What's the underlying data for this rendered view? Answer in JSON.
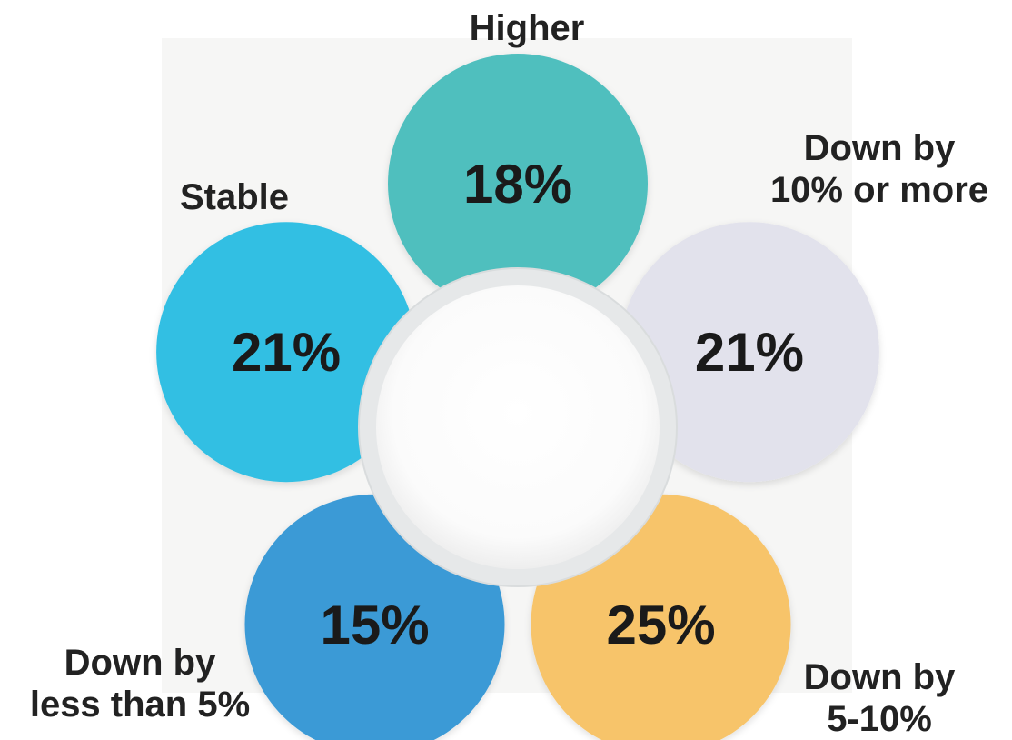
{
  "chart_data": {
    "type": "pie",
    "title": "",
    "slices": [
      {
        "label_lines": [
          "Higher"
        ],
        "value": 18,
        "value_label": "18%",
        "color": "#4fbfbe"
      },
      {
        "label_lines": [
          "Down by",
          "10% or more"
        ],
        "value": 21,
        "value_label": "21%",
        "color": "#e2e2ec"
      },
      {
        "label_lines": [
          "Down by",
          "5-10%"
        ],
        "value": 25,
        "value_label": "25%",
        "color": "#f7c46a"
      },
      {
        "label_lines": [
          "Down by",
          "less than 5%"
        ],
        "value": 15,
        "value_label": "15%",
        "color": "#3b9ad6"
      },
      {
        "label_lines": [
          "Stable"
        ],
        "value": 21,
        "value_label": "21%",
        "color": "#32bfe3"
      }
    ]
  },
  "colors": {
    "background": "#ffffff",
    "panel": "#f6f6f5",
    "center_ring": "#e9ebec",
    "center_fill": "#ffffff",
    "text": "#1a1a1a"
  }
}
